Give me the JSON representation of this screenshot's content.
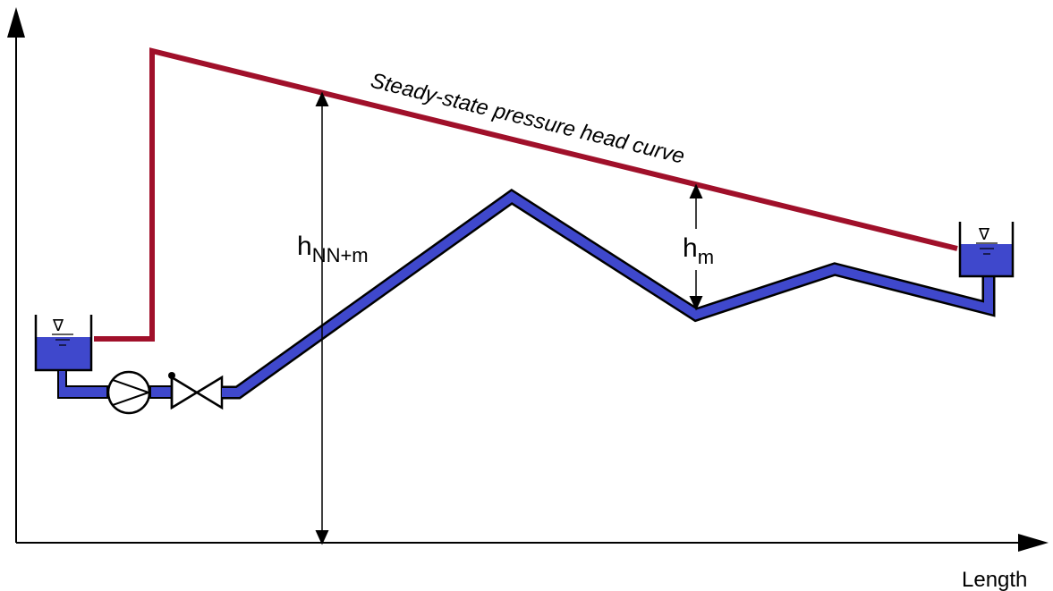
{
  "diagram": {
    "curve_label": "Steady-state pressure head curve",
    "axis_x_label": "Length",
    "h_total": {
      "base": "h",
      "sub": "NN+m"
    },
    "h_local": {
      "base": "h",
      "sub": "m"
    },
    "water_level_symbol": "∇"
  },
  "colors": {
    "pressure_line": "#a0102a",
    "pipe_fill": "#3f48cc",
    "tank_water": "#3f48cc",
    "ink": "#000000"
  },
  "icons": [
    "pump-icon",
    "valve-icon",
    "water-level-icon",
    "reservoir-icon"
  ]
}
